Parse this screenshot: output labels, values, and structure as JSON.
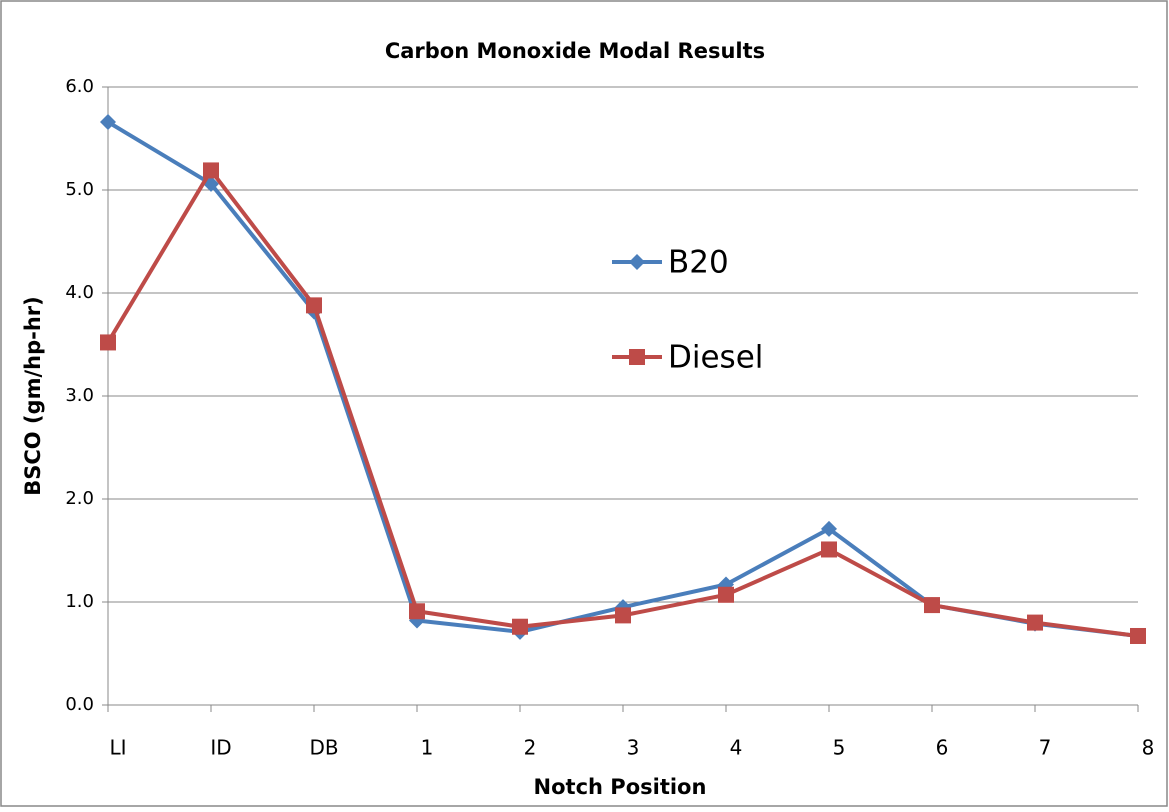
{
  "chart_data": {
    "type": "line",
    "title": "Carbon Monoxide Modal Results",
    "x_label": "Notch Position",
    "y_label": "BSCO (gm/hp-hr)",
    "categories": [
      "LI",
      "ID",
      "DB",
      "1",
      "2",
      "3",
      "4",
      "5",
      "6",
      "7",
      "8"
    ],
    "series": [
      {
        "name": "B20",
        "color": "#4a7ebb",
        "marker": "diamond",
        "values": [
          5.66,
          5.06,
          3.82,
          0.82,
          0.71,
          0.95,
          1.17,
          1.71,
          0.97,
          0.79,
          0.67
        ]
      },
      {
        "name": "Diesel",
        "color": "#be4b48",
        "marker": "square",
        "values": [
          3.52,
          5.19,
          3.88,
          0.91,
          0.76,
          0.87,
          1.07,
          1.51,
          0.97,
          0.8,
          0.67
        ]
      }
    ],
    "ylim": [
      0,
      6
    ],
    "yticks": [
      {
        "value": 0,
        "label": "0.0"
      },
      {
        "value": 1,
        "label": "1.0"
      },
      {
        "value": 2,
        "label": "2.0"
      },
      {
        "value": 3,
        "label": "3.0"
      },
      {
        "value": 4,
        "label": "4.0"
      },
      {
        "value": 5,
        "label": "5.0"
      },
      {
        "value": 6,
        "label": "6.0"
      }
    ],
    "grid": true
  }
}
